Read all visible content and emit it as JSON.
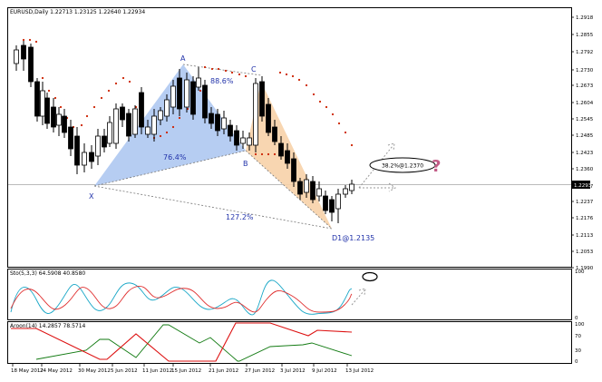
{
  "main_chart": {
    "title": "EURUSD,Daily  1.22713 1.23125 1.22640 1.22934",
    "price_ticks": [
      "1.2918",
      "1.2855",
      "1.2792",
      "1.2730",
      "1.2673",
      "1.2604",
      "1.2545",
      "1.2485",
      "1.2423",
      "1.2360",
      "1.2297",
      "1.2237",
      "1.2176",
      "1.2113",
      "1.2053",
      "1.1990"
    ],
    "current_price": "1.2293",
    "pattern_labels": {
      "X": "X",
      "A": "A",
      "B": "B",
      "C": "C",
      "D": "D1@1.2135"
    },
    "ratios": {
      "xab": "76.4%",
      "abc": "88.6%",
      "bcd": "127.2%"
    },
    "projection_note": "38.2%@1.2370",
    "question_mark": "?"
  },
  "stochastic": {
    "title": "Sto(5,3,3) 64.5908 40.8580",
    "ticks": [
      "100",
      "0"
    ]
  },
  "aroon": {
    "title": "Aroon(14) 14.2857 78.5714",
    "ticks": [
      "100",
      "70",
      "30",
      "0"
    ]
  },
  "time_axis": [
    "18 May 2012",
    "24 May 2012",
    "30 May 2012",
    "5 Jun 2012",
    "11 Jun 2012",
    "15 Jun 2012",
    "21 Jun 2012",
    "27 Jun 2012",
    "3 Jul 2012",
    "9 Jul 2012",
    "13 Jul 2012"
  ],
  "colors": {
    "bull_fill": "#ffffff",
    "bear_fill": "#000000",
    "xab_fill": "#a9c4f0",
    "bcd_fill": "#f7d2a8",
    "sar": "#cc2200",
    "sto_main": "#1aa7c7",
    "sto_signal": "#e03030",
    "aroon_up": "#117a11",
    "aroon_down": "#dd1111",
    "ratio_text": "#1a2aa8"
  }
}
